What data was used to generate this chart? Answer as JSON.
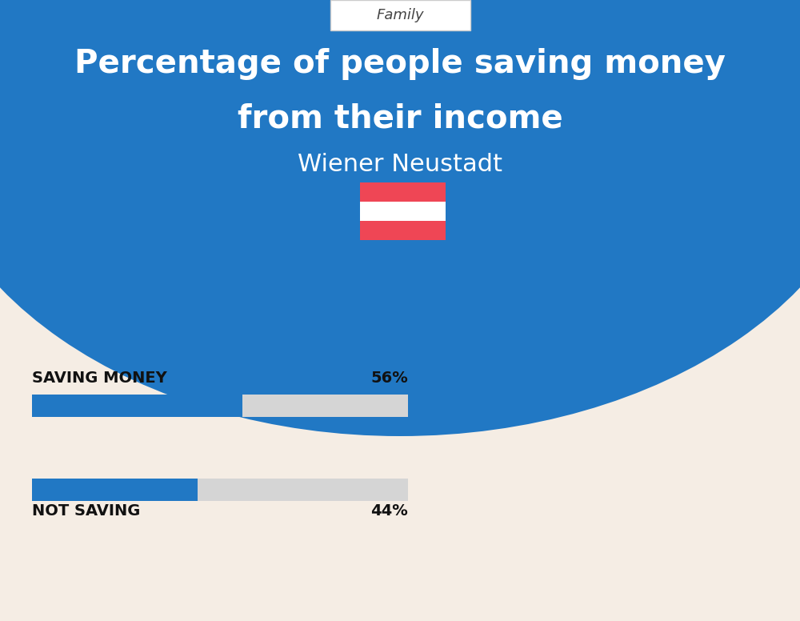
{
  "title_line1": "Percentage of people saving money",
  "title_line2": "from their income",
  "subtitle": "Wiener Neustadt",
  "category_label": "Family",
  "bg_color_top": "#2178c4",
  "bg_color_bottom": "#f5ede4",
  "bar_color": "#2178c4",
  "bar_bg_color": "#d5d5d5",
  "saving_label": "SAVING MONEY",
  "saving_value": 56,
  "saving_pct_label": "56%",
  "not_saving_label": "NOT SAVING",
  "not_saving_value": 44,
  "not_saving_pct_label": "44%",
  "bar_max": 100,
  "text_color_dark": "#111111",
  "text_color_white": "#ffffff",
  "flag_red": "#ef4655",
  "flag_white": "#ffffff",
  "family_box_color": "#ffffff",
  "family_box_border": "#cccccc"
}
